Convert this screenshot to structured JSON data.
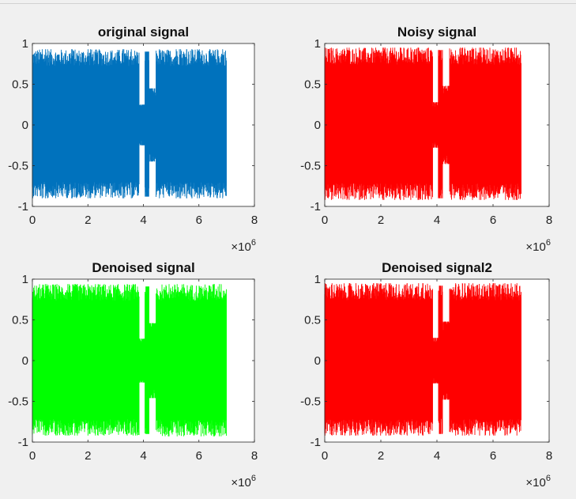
{
  "chart_data": [
    {
      "type": "line",
      "title": "original signal",
      "xlabel": "",
      "ylabel": "",
      "x_scale_label": "×10",
      "x_scale_exponent": "6",
      "xlim": [
        0,
        8
      ],
      "ylim": [
        -1,
        1
      ],
      "x_ticks": [
        "0",
        "2",
        "4",
        "6",
        "8"
      ],
      "y_ticks": [
        "1",
        "0.5",
        "0",
        "-0.5",
        "-1"
      ],
      "color": "#0072BD",
      "series": [
        {
          "x_start": 0,
          "x_end": 7.0,
          "envelope": [
            {
              "x_range": [
                0,
                3.85
              ],
              "max": 0.93,
              "min": -0.9
            },
            {
              "x_range": [
                3.85,
                4.05
              ],
              "max": 0.25,
              "min": -0.25
            },
            {
              "x_range": [
                4.05,
                4.2
              ],
              "max": 0.9,
              "min": -0.88
            },
            {
              "x_range": [
                4.2,
                4.45
              ],
              "max": 0.45,
              "min": -0.45
            },
            {
              "x_range": [
                4.45,
                7.0
              ],
              "max": 0.93,
              "min": -0.9
            }
          ]
        }
      ]
    },
    {
      "type": "line",
      "title": "Noisy signal",
      "xlabel": "",
      "ylabel": "",
      "x_scale_label": "×10",
      "x_scale_exponent": "6",
      "xlim": [
        0,
        8
      ],
      "ylim": [
        -1,
        1
      ],
      "x_ticks": [
        "0",
        "2",
        "4",
        "6",
        "8"
      ],
      "y_ticks": [
        "1",
        "0.5",
        "0",
        "-0.5",
        "-1"
      ],
      "color": "#FF0000",
      "series": [
        {
          "x_start": 0,
          "x_end": 7.0,
          "envelope": [
            {
              "x_range": [
                0,
                3.85
              ],
              "max": 0.95,
              "min": -0.92
            },
            {
              "x_range": [
                3.85,
                4.05
              ],
              "max": 0.28,
              "min": -0.28
            },
            {
              "x_range": [
                4.05,
                4.2
              ],
              "max": 0.92,
              "min": -0.9
            },
            {
              "x_range": [
                4.2,
                4.45
              ],
              "max": 0.48,
              "min": -0.48
            },
            {
              "x_range": [
                4.45,
                7.0
              ],
              "max": 0.95,
              "min": -0.92
            }
          ]
        }
      ]
    },
    {
      "type": "line",
      "title": "Denoised signal",
      "xlabel": "",
      "ylabel": "",
      "x_scale_label": "×10",
      "x_scale_exponent": "6",
      "xlim": [
        0,
        8
      ],
      "ylim": [
        -1,
        1
      ],
      "x_ticks": [
        "0",
        "2",
        "4",
        "6",
        "8"
      ],
      "y_ticks": [
        "1",
        "0.5",
        "0",
        "-0.5",
        "-1"
      ],
      "color": "#00FF00",
      "series": [
        {
          "x_start": 0,
          "x_end": 7.0,
          "envelope": [
            {
              "x_range": [
                0,
                3.85
              ],
              "max": 0.94,
              "min": -0.92
            },
            {
              "x_range": [
                3.85,
                4.05
              ],
              "max": 0.27,
              "min": -0.27
            },
            {
              "x_range": [
                4.05,
                4.2
              ],
              "max": 0.91,
              "min": -0.9
            },
            {
              "x_range": [
                4.2,
                4.45
              ],
              "max": 0.46,
              "min": -0.46
            },
            {
              "x_range": [
                4.45,
                7.0
              ],
              "max": 0.94,
              "min": -0.93
            }
          ]
        }
      ]
    },
    {
      "type": "line",
      "title": "Denoised signal2",
      "xlabel": "",
      "ylabel": "",
      "x_scale_label": "×10",
      "x_scale_exponent": "6",
      "xlim": [
        0,
        8
      ],
      "ylim": [
        -1,
        1
      ],
      "x_ticks": [
        "0",
        "2",
        "4",
        "6",
        "8"
      ],
      "y_ticks": [
        "1",
        "0.5",
        "0",
        "-0.5",
        "-1"
      ],
      "color": "#FF0000",
      "series": [
        {
          "x_start": 0,
          "x_end": 7.0,
          "envelope": [
            {
              "x_range": [
                0,
                3.85
              ],
              "max": 0.95,
              "min": -0.92
            },
            {
              "x_range": [
                3.85,
                4.05
              ],
              "max": 0.28,
              "min": -0.28
            },
            {
              "x_range": [
                4.05,
                4.2
              ],
              "max": 0.92,
              "min": -0.9
            },
            {
              "x_range": [
                4.2,
                4.45
              ],
              "max": 0.48,
              "min": -0.48
            },
            {
              "x_range": [
                4.45,
                7.0
              ],
              "max": 0.95,
              "min": -0.92
            }
          ]
        }
      ]
    }
  ]
}
